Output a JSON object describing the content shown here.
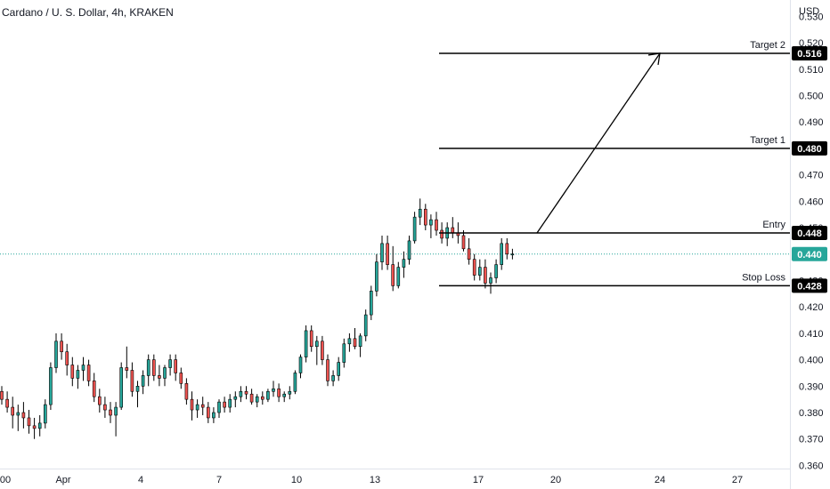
{
  "header": {
    "title": "Cardano / U. S. Dollar, 4h, KRAKEN"
  },
  "chart_data": {
    "type": "candlestick",
    "title": "Cardano / U. S. Dollar, 4h, KRAKEN",
    "currency_label": "USD",
    "ylim": [
      0.355,
      0.535
    ],
    "y_ticks": [
      "0.530",
      "0.520",
      "0.510",
      "0.500",
      "0.490",
      "0.470",
      "0.460",
      "0.450",
      "0.430",
      "0.420",
      "0.410",
      "0.400",
      "0.390",
      "0.380",
      "0.370",
      "0.360"
    ],
    "x_ticks": [
      "00",
      "Apr",
      "4",
      "7",
      "10",
      "13",
      "17",
      "20",
      "24",
      "27"
    ],
    "last_price": 0.44,
    "colors": {
      "up": "#26a69a",
      "down": "#ef5350",
      "current": "#26a69a",
      "level": "#000000",
      "badge": "#000000"
    },
    "levels": [
      {
        "name": "Target 2",
        "value": 0.516
      },
      {
        "name": "Target 1",
        "value": 0.48
      },
      {
        "name": "Entry",
        "value": 0.448
      },
      {
        "name": "Stop Loss",
        "value": 0.428
      }
    ],
    "badges": {
      "target2": "0.516",
      "target1": "0.480",
      "entry": "0.448",
      "current": "0.440",
      "stop": "0.428"
    },
    "candles": [
      [
        0.388,
        0.39,
        0.383,
        0.385
      ],
      [
        0.385,
        0.388,
        0.38,
        0.382
      ],
      [
        0.382,
        0.386,
        0.374,
        0.379
      ],
      [
        0.379,
        0.383,
        0.373,
        0.38
      ],
      [
        0.38,
        0.384,
        0.374,
        0.378
      ],
      [
        0.378,
        0.381,
        0.372,
        0.375
      ],
      [
        0.375,
        0.378,
        0.37,
        0.374
      ],
      [
        0.374,
        0.379,
        0.371,
        0.376
      ],
      [
        0.376,
        0.385,
        0.374,
        0.383
      ],
      [
        0.383,
        0.399,
        0.381,
        0.397
      ],
      [
        0.397,
        0.41,
        0.395,
        0.407
      ],
      [
        0.407,
        0.41,
        0.4,
        0.403
      ],
      [
        0.403,
        0.406,
        0.394,
        0.398
      ],
      [
        0.398,
        0.401,
        0.39,
        0.393
      ],
      [
        0.393,
        0.398,
        0.389,
        0.396
      ],
      [
        0.396,
        0.401,
        0.392,
        0.398
      ],
      [
        0.398,
        0.4,
        0.39,
        0.392
      ],
      [
        0.392,
        0.395,
        0.384,
        0.386
      ],
      [
        0.386,
        0.389,
        0.38,
        0.383
      ],
      [
        0.383,
        0.386,
        0.378,
        0.381
      ],
      [
        0.381,
        0.384,
        0.376,
        0.379
      ],
      [
        0.379,
        0.384,
        0.371,
        0.382
      ],
      [
        0.382,
        0.399,
        0.381,
        0.397
      ],
      [
        0.397,
        0.405,
        0.393,
        0.396
      ],
      [
        0.396,
        0.399,
        0.386,
        0.388
      ],
      [
        0.388,
        0.392,
        0.382,
        0.39
      ],
      [
        0.39,
        0.396,
        0.387,
        0.394
      ],
      [
        0.394,
        0.402,
        0.39,
        0.4
      ],
      [
        0.4,
        0.402,
        0.392,
        0.394
      ],
      [
        0.394,
        0.398,
        0.39,
        0.393
      ],
      [
        0.393,
        0.398,
        0.39,
        0.397
      ],
      [
        0.397,
        0.402,
        0.394,
        0.4
      ],
      [
        0.4,
        0.402,
        0.392,
        0.395
      ],
      [
        0.395,
        0.397,
        0.389,
        0.391
      ],
      [
        0.391,
        0.393,
        0.383,
        0.385
      ],
      [
        0.385,
        0.388,
        0.377,
        0.381
      ],
      [
        0.381,
        0.385,
        0.378,
        0.383
      ],
      [
        0.383,
        0.386,
        0.379,
        0.382
      ],
      [
        0.382,
        0.384,
        0.376,
        0.378
      ],
      [
        0.378,
        0.382,
        0.376,
        0.38
      ],
      [
        0.38,
        0.385,
        0.378,
        0.384
      ],
      [
        0.384,
        0.386,
        0.38,
        0.382
      ],
      [
        0.382,
        0.387,
        0.38,
        0.385
      ],
      [
        0.385,
        0.388,
        0.382,
        0.386
      ],
      [
        0.386,
        0.39,
        0.384,
        0.388
      ],
      [
        0.388,
        0.39,
        0.385,
        0.387
      ],
      [
        0.387,
        0.389,
        0.383,
        0.384
      ],
      [
        0.384,
        0.387,
        0.382,
        0.386
      ],
      [
        0.386,
        0.388,
        0.383,
        0.385
      ],
      [
        0.385,
        0.389,
        0.384,
        0.388
      ],
      [
        0.388,
        0.392,
        0.386,
        0.389
      ],
      [
        0.389,
        0.391,
        0.384,
        0.386
      ],
      [
        0.386,
        0.388,
        0.384,
        0.387
      ],
      [
        0.387,
        0.39,
        0.385,
        0.388
      ],
      [
        0.388,
        0.396,
        0.387,
        0.395
      ],
      [
        0.395,
        0.402,
        0.393,
        0.401
      ],
      [
        0.401,
        0.413,
        0.399,
        0.411
      ],
      [
        0.411,
        0.413,
        0.403,
        0.405
      ],
      [
        0.405,
        0.409,
        0.398,
        0.407
      ],
      [
        0.407,
        0.409,
        0.398,
        0.4
      ],
      [
        0.4,
        0.402,
        0.39,
        0.392
      ],
      [
        0.392,
        0.396,
        0.39,
        0.394
      ],
      [
        0.394,
        0.401,
        0.392,
        0.399
      ],
      [
        0.399,
        0.408,
        0.397,
        0.406
      ],
      [
        0.406,
        0.41,
        0.403,
        0.408
      ],
      [
        0.408,
        0.412,
        0.404,
        0.405
      ],
      [
        0.405,
        0.41,
        0.401,
        0.409
      ],
      [
        0.409,
        0.419,
        0.407,
        0.417
      ],
      [
        0.417,
        0.428,
        0.415,
        0.426
      ],
      [
        0.426,
        0.44,
        0.424,
        0.437
      ],
      [
        0.437,
        0.447,
        0.434,
        0.444
      ],
      [
        0.444,
        0.447,
        0.434,
        0.436
      ],
      [
        0.436,
        0.443,
        0.426,
        0.428
      ],
      [
        0.428,
        0.437,
        0.427,
        0.435
      ],
      [
        0.435,
        0.441,
        0.431,
        0.438
      ],
      [
        0.438,
        0.447,
        0.436,
        0.445
      ],
      [
        0.445,
        0.456,
        0.444,
        0.454
      ],
      [
        0.454,
        0.461,
        0.451,
        0.457
      ],
      [
        0.457,
        0.459,
        0.449,
        0.451
      ],
      [
        0.451,
        0.455,
        0.446,
        0.453
      ],
      [
        0.453,
        0.456,
        0.447,
        0.449
      ],
      [
        0.449,
        0.452,
        0.444,
        0.446
      ],
      [
        0.446,
        0.452,
        0.443,
        0.45
      ],
      [
        0.45,
        0.454,
        0.446,
        0.448
      ],
      [
        0.448,
        0.452,
        0.444,
        0.447
      ],
      [
        0.447,
        0.449,
        0.441,
        0.442
      ],
      [
        0.442,
        0.446,
        0.436,
        0.438
      ],
      [
        0.438,
        0.44,
        0.43,
        0.432
      ],
      [
        0.432,
        0.438,
        0.43,
        0.435
      ],
      [
        0.435,
        0.438,
        0.427,
        0.429
      ],
      [
        0.429,
        0.433,
        0.425,
        0.431
      ],
      [
        0.431,
        0.438,
        0.429,
        0.436
      ],
      [
        0.436,
        0.446,
        0.434,
        0.444
      ],
      [
        0.444,
        0.446,
        0.438,
        0.44
      ],
      [
        0.44,
        0.442,
        0.438,
        0.44
      ]
    ]
  }
}
